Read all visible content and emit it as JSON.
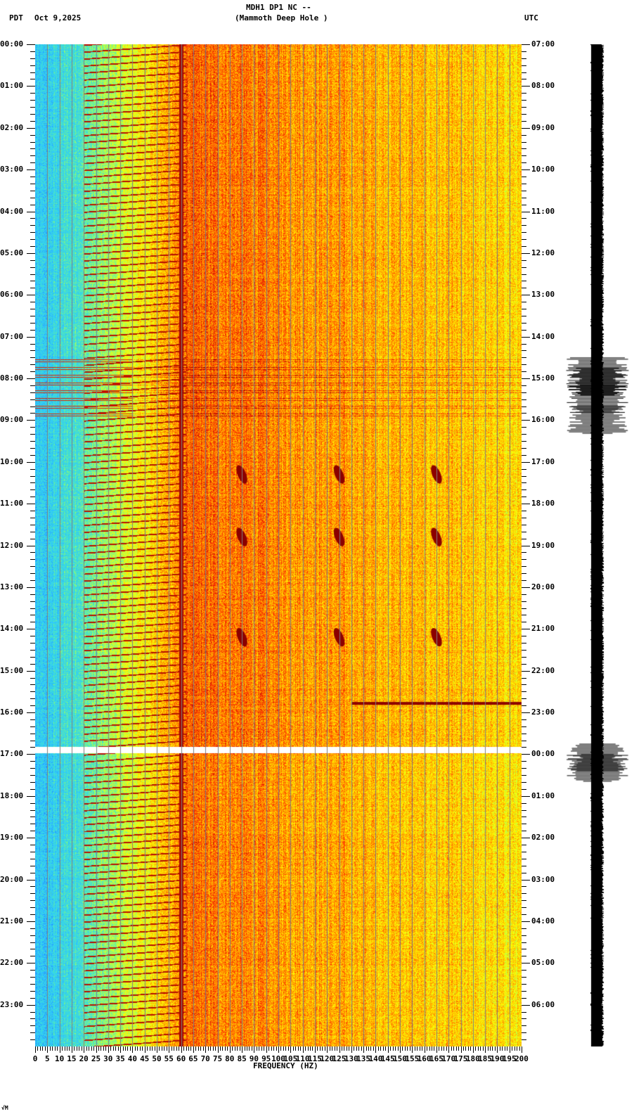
{
  "header": {
    "station_line": "MDH1 DP1 NC --",
    "station_name": "(Mammoth Deep Hole )",
    "left_timezone": "PDT",
    "date": "Oct 9,2025",
    "right_timezone": "UTC"
  },
  "footer": {
    "xlabel": "FREQUENCY (HZ)",
    "corner_mark": "√M"
  },
  "chart_data": {
    "type": "heatmap",
    "title": "MDH1 DP1 NC -- (Mammoth Deep Hole )",
    "subtitle": "PDT Oct 9,2025 / UTC",
    "xlabel": "FREQUENCY (HZ)",
    "ylabel_left": "PDT",
    "ylabel_right": "UTC",
    "xlim": [
      0,
      200
    ],
    "x_ticks": [
      0,
      5,
      10,
      15,
      20,
      25,
      30,
      35,
      40,
      45,
      50,
      55,
      60,
      65,
      70,
      75,
      80,
      85,
      90,
      95,
      100,
      105,
      110,
      115,
      120,
      125,
      130,
      135,
      140,
      145,
      150,
      155,
      160,
      165,
      170,
      175,
      180,
      185,
      190,
      195,
      200
    ],
    "y_ticks_left": [
      "00:00",
      "01:00",
      "02:00",
      "03:00",
      "04:00",
      "05:00",
      "06:00",
      "07:00",
      "08:00",
      "09:00",
      "10:00",
      "11:00",
      "12:00",
      "13:00",
      "14:00",
      "15:00",
      "16:00",
      "17:00",
      "18:00",
      "19:00",
      "20:00",
      "21:00",
      "22:00",
      "23:00"
    ],
    "y_ticks_right": [
      "07:00",
      "08:00",
      "09:00",
      "10:00",
      "11:00",
      "12:00",
      "13:00",
      "14:00",
      "15:00",
      "16:00",
      "17:00",
      "18:00",
      "19:00",
      "20:00",
      "21:00",
      "22:00",
      "23:00",
      "00:00",
      "01:00",
      "02:00",
      "03:00",
      "04:00",
      "05:00",
      "06:00"
    ],
    "minor_ticks_per_hour": 6,
    "grid": {
      "vertical_every_hz": 5,
      "color": "#808080"
    },
    "colormap": [
      "#1e7fff",
      "#2fc8ff",
      "#40e0d0",
      "#a0ff60",
      "#ffff00",
      "#ffa500",
      "#ff3000",
      "#8b0000"
    ],
    "features": [
      {
        "type": "persistent_line",
        "frequency_hz": 60,
        "description": "strong 60 Hz line across full day"
      },
      {
        "type": "low_noise_band",
        "range_hz": [
          0,
          20
        ],
        "description": "blue/cyan low energy"
      },
      {
        "type": "chirp_series",
        "range_hz": [
          20,
          60
        ],
        "description": "repeating diagonal dark-red gliding tones roughly every 10 min"
      },
      {
        "type": "disturbance",
        "time_pdt": [
          "07:30",
          "09:00"
        ],
        "description": "broadband horizontal striping and events"
      },
      {
        "type": "data_gap",
        "time_pdt": "16:50",
        "description": "white gap row just before 17:00"
      },
      {
        "type": "event_tracks",
        "frequencies_hz": [
          85,
          125,
          165
        ],
        "time_pdt": [
          "10:15",
          "16:00"
        ],
        "description": "hook-shaped dark tracks"
      }
    ],
    "trace": {
      "description": "seismogram amplitude trace, black",
      "bursts_pdt": [
        "07:30",
        "07:45",
        "08:10",
        "08:40",
        "16:45",
        "17:00"
      ]
    }
  }
}
